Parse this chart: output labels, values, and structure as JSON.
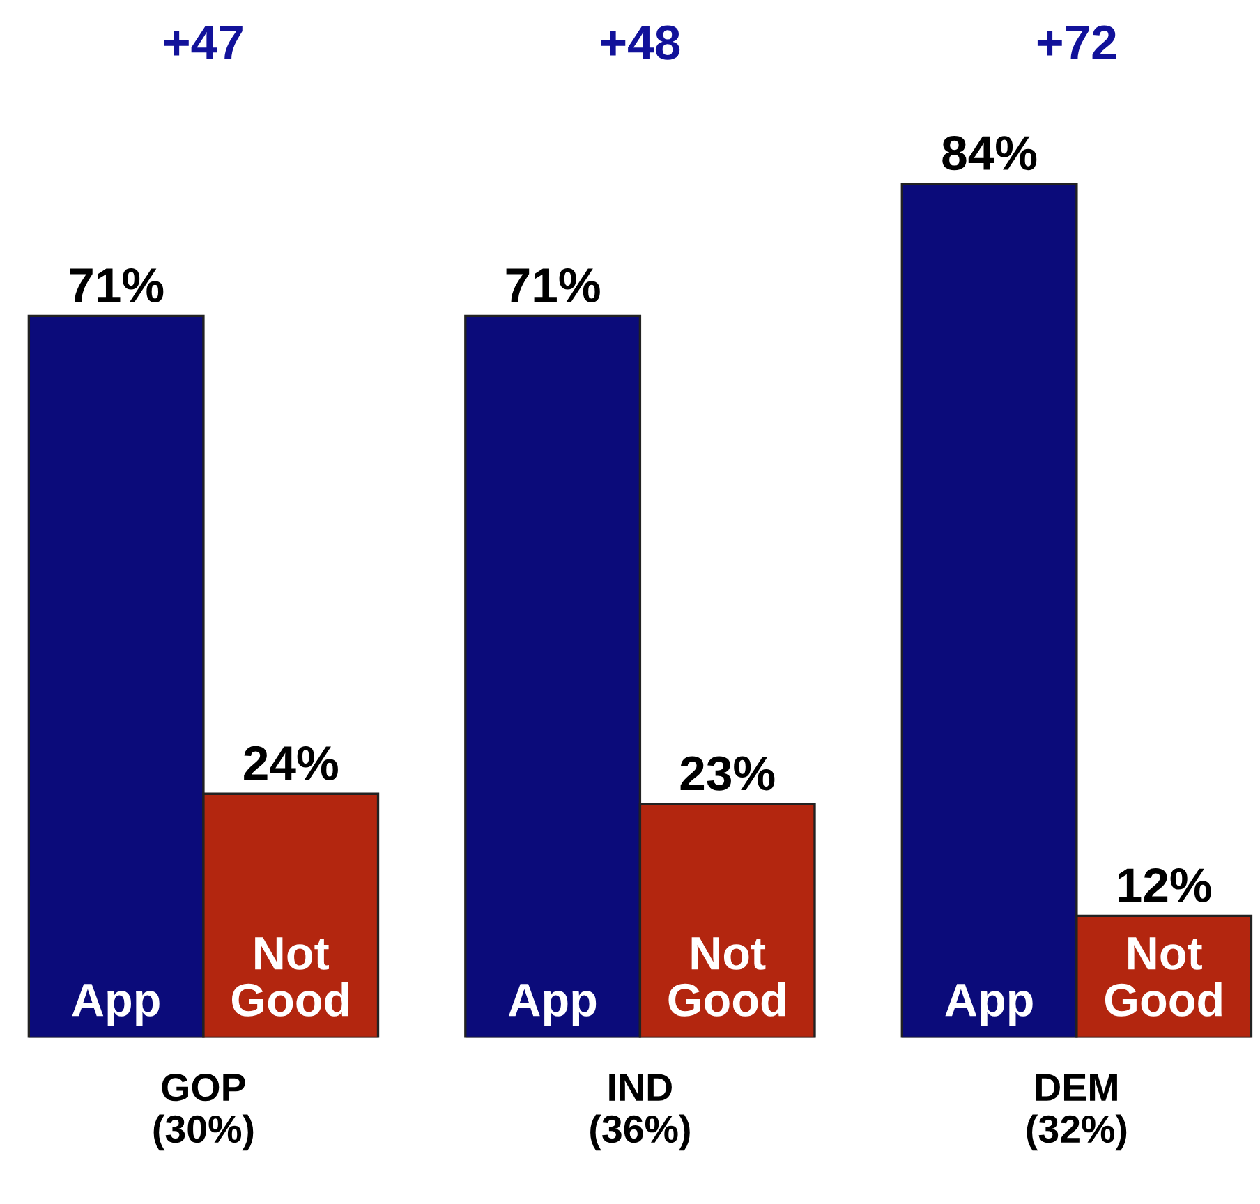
{
  "chart_data": {
    "type": "bar",
    "categories": [
      "GOP\n(30%)",
      "IND\n(36%)",
      "DEM\n(32%)"
    ],
    "series": [
      {
        "name": "App",
        "color": "#0b0b7a",
        "values": [
          71,
          71,
          84
        ],
        "value_labels": [
          "71%",
          "71%",
          "84%"
        ]
      },
      {
        "name": "Not Good",
        "color": "#b3260f",
        "values": [
          24,
          23,
          12
        ],
        "value_labels": [
          "24%",
          "23%",
          "12%"
        ]
      }
    ],
    "tick_labels": "x",
    "grid": false,
    "legend": false,
    "annotations": [
      "+47",
      "+48",
      "+72"
    ]
  }
}
